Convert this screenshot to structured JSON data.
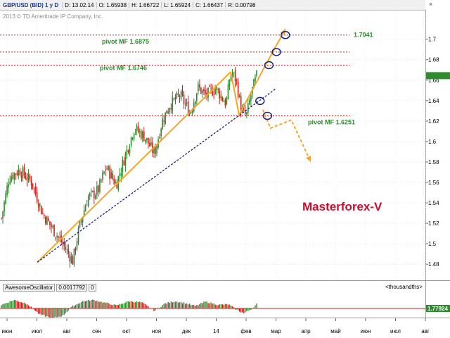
{
  "window": {
    "title": "GBP/USD (BID) 1 y D",
    "fields": [
      {
        "label": "D:",
        "value": "13.02.14"
      },
      {
        "label": "O:",
        "value": "1.65938"
      },
      {
        "label": "H:",
        "value": "1.66722"
      },
      {
        "label": "L:",
        "value": "1.65924"
      },
      {
        "label": "C:",
        "value": "1.66437"
      },
      {
        "label": "R:",
        "value": "0.00798"
      }
    ],
    "close_glyph": "×",
    "copyright": "2013 © TD Ameritrade IP Company, Inc.",
    "brand": "Masterforex-V"
  },
  "colors": {
    "up_candle": "#2e8b2e",
    "down_candle": "#cc2222",
    "trend_line": "#f5a623",
    "support_line": "#1a237e",
    "pivot_line": "#cc2222",
    "pivot_label": "#2e8b2e",
    "brand": "#c8102e",
    "circle": "#1a237e"
  },
  "chart_data": [
    {
      "type": "line",
      "title": "GBP/USD (BID) 1 y D",
      "xlabel": "",
      "ylabel": "",
      "ylim": [
        1.465,
        1.728
      ],
      "grid": true,
      "x_tick_labels": [
        "июн",
        "июл",
        "авг",
        "сен",
        "окт",
        "ноя",
        "дек",
        "14",
        "фев",
        "мар",
        "апр",
        "май",
        "июн",
        "июл",
        "авг"
      ],
      "y_tick_labels": [
        "1.48",
        "1.5",
        "1.52",
        "1.54",
        "1.56",
        "1.58",
        "1.6",
        "1.62",
        "1.64",
        "1.66",
        "1.68",
        "1.7"
      ],
      "y_ticks": [
        1.48,
        1.5,
        1.52,
        1.54,
        1.56,
        1.58,
        1.6,
        1.62,
        1.64,
        1.66,
        1.68,
        1.7
      ],
      "last_price": 1.66437,
      "price_series": {
        "t": [
          0.0,
          0.03,
          0.07,
          0.12,
          0.16,
          0.2,
          0.24,
          0.28,
          0.3,
          0.32,
          0.34,
          0.36,
          0.38,
          0.41,
          0.45,
          0.49,
          0.52,
          0.56,
          0.6,
          0.63,
          0.66,
          0.7,
          0.74,
          0.77,
          0.8,
          0.84,
          0.88,
          0.9,
          0.92,
          0.94,
          0.96,
          0.98,
          1.0
        ],
        "close": [
          1.525,
          1.565,
          1.572,
          1.56,
          1.53,
          1.515,
          1.5,
          1.483,
          1.51,
          1.53,
          1.546,
          1.548,
          1.553,
          1.575,
          1.558,
          1.59,
          1.613,
          1.605,
          1.588,
          1.62,
          1.636,
          1.645,
          1.628,
          1.653,
          1.645,
          1.652,
          1.637,
          1.668,
          1.66,
          1.63,
          1.625,
          1.648,
          1.664
        ]
      },
      "pivots": [
        {
          "label": "1.7041",
          "value": 1.7041
        },
        {
          "label": "pivot MF 1.6875",
          "value": 1.6875
        },
        {
          "label": "pivot MF 1.6746",
          "value": 1.6746
        },
        {
          "label": "pivot MF 1.6251",
          "value": 1.6251
        }
      ],
      "annotations": [
        {
          "kind": "trend-up-line",
          "from": {
            "month": 1.25,
            "value": 1.482
          },
          "to": {
            "month": 7.72,
            "value": 1.668
          }
        },
        {
          "kind": "support-line",
          "from": {
            "month": 1.25,
            "value": 1.482
          },
          "to": {
            "month": 9.25,
            "value": 1.652
          }
        },
        {
          "kind": "up-projection",
          "points": [
            {
              "month": 7.72,
              "value": 1.668
            },
            {
              "month": 8.0,
              "value": 1.626
            },
            {
              "month": 8.8,
              "value": 1.67
            },
            {
              "month": 9.55,
              "value": 1.71
            }
          ]
        },
        {
          "kind": "down-projection",
          "points": [
            {
              "month": 8.8,
              "value": 1.631
            },
            {
              "month": 9.05,
              "value": 1.613
            },
            {
              "month": 9.75,
              "value": 1.621
            },
            {
              "month": 10.4,
              "value": 1.58
            }
          ]
        },
        {
          "kind": "circle",
          "month": 8.7,
          "value": 1.6396
        },
        {
          "kind": "circle",
          "month": 8.95,
          "value": 1.6251
        },
        {
          "kind": "circle",
          "month": 9.0,
          "value": 1.6746
        },
        {
          "kind": "circle",
          "month": 9.25,
          "value": 1.6875
        },
        {
          "kind": "circle",
          "month": 9.55,
          "value": 1.7041
        }
      ]
    },
    {
      "type": "bar",
      "title": "AwesomeOscillator",
      "indicator_name": "AwesomeOscillator",
      "value": "0.0017792",
      "aux_value": "0",
      "units_label": "<thousandths>",
      "last_value": "1.77924",
      "ylim": [
        -7,
        7
      ],
      "profile": {
        "t": [
          0.0,
          0.05,
          0.1,
          0.15,
          0.2,
          0.24,
          0.28,
          0.32,
          0.36,
          0.4,
          0.45,
          0.5,
          0.55,
          0.6,
          0.64,
          0.68,
          0.72,
          0.76,
          0.8,
          0.85,
          0.89,
          0.92,
          0.95,
          0.98,
          1.0
        ],
        "ao": [
          1.5,
          3.5,
          2.0,
          -2.5,
          -4.0,
          -3.0,
          1.0,
          3.0,
          3.5,
          2.5,
          1.2,
          3.0,
          2.5,
          -1.0,
          2.0,
          3.0,
          2.2,
          1.0,
          2.8,
          1.5,
          1.7,
          -0.5,
          -2.0,
          -0.2,
          1.8
        ]
      }
    }
  ]
}
